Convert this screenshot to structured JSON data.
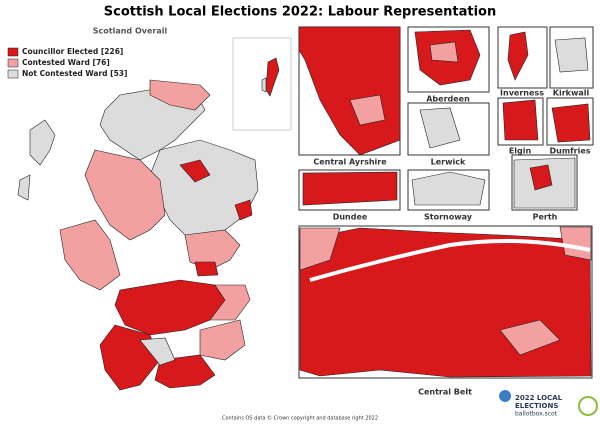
{
  "header": {
    "title": "Scottish Local Elections 2022: Labour Representation",
    "subtitle": "Scotland Overall"
  },
  "legend": [
    {
      "label": "Councillor Elected [226]",
      "color": "#d7191c"
    },
    {
      "label": "Contested Ward [76]",
      "color": "#f2a0a0"
    },
    {
      "label": "Not Contested Ward [53]",
      "color": "#dcdcdc"
    }
  ],
  "insets": [
    "Central Ayrshire",
    "Aberdeen",
    "Inverness",
    "Kirkwall",
    "Lerwick",
    "Elgin",
    "Dumfries",
    "Dundee",
    "Stornoway",
    "Perth",
    "Central Belt"
  ],
  "footer": "Contains OS data © Crown copyright and database right 2022",
  "logo": {
    "line1": "2022 LOCAL",
    "line2": "ELECTIONS",
    "site": "ballotbox.scot"
  }
}
